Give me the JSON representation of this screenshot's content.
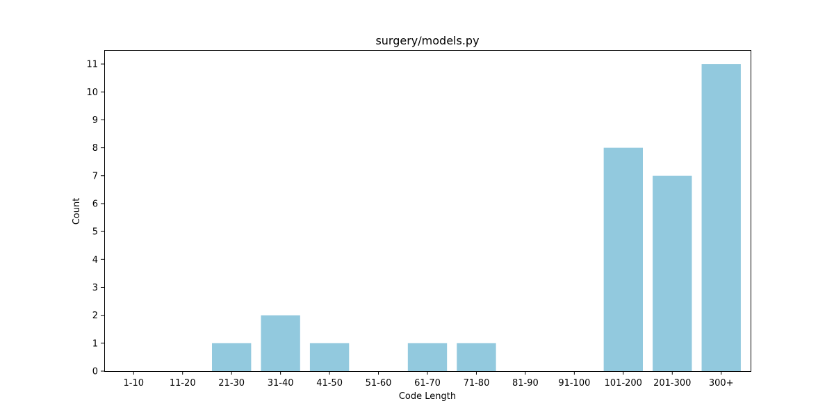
{
  "chart_data": {
    "type": "bar",
    "title": "surgery/models.py",
    "xlabel": "Code Length",
    "ylabel": "Count",
    "categories": [
      "1-10",
      "11-20",
      "21-30",
      "31-40",
      "41-50",
      "51-60",
      "61-70",
      "71-80",
      "81-90",
      "91-100",
      "101-200",
      "201-300",
      "300+"
    ],
    "values": [
      0,
      0,
      1,
      2,
      1,
      0,
      1,
      1,
      0,
      0,
      8,
      7,
      11
    ],
    "ylim": [
      0,
      11.5
    ],
    "yticks": [
      0,
      1,
      2,
      3,
      4,
      5,
      6,
      7,
      8,
      9,
      10,
      11
    ],
    "bar_color": "#92c9de",
    "grid": false,
    "legend": false
  }
}
